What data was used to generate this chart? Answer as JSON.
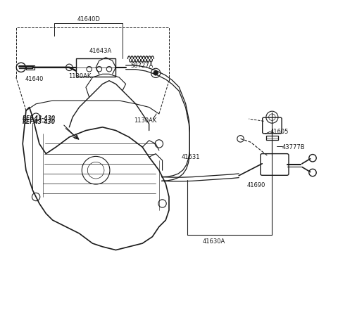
{
  "bg_color": "#ffffff",
  "line_color": "#1a1a1a",
  "text_color": "#1a1a1a",
  "ref_text": "REF.43-430",
  "label_41630A": "41630A",
  "label_41690": "41690",
  "label_43777B": "43777B",
  "label_41605": "41605",
  "label_41631": "41631",
  "label_1130AK_top": "1130AK",
  "label_1130AK_bot": "1130AK",
  "label_58727A": "58727A",
  "label_41643A": "41643A",
  "label_41640": "41640",
  "label_41640D": "41640D",
  "fs": 6.0,
  "fs_ref": 5.5
}
